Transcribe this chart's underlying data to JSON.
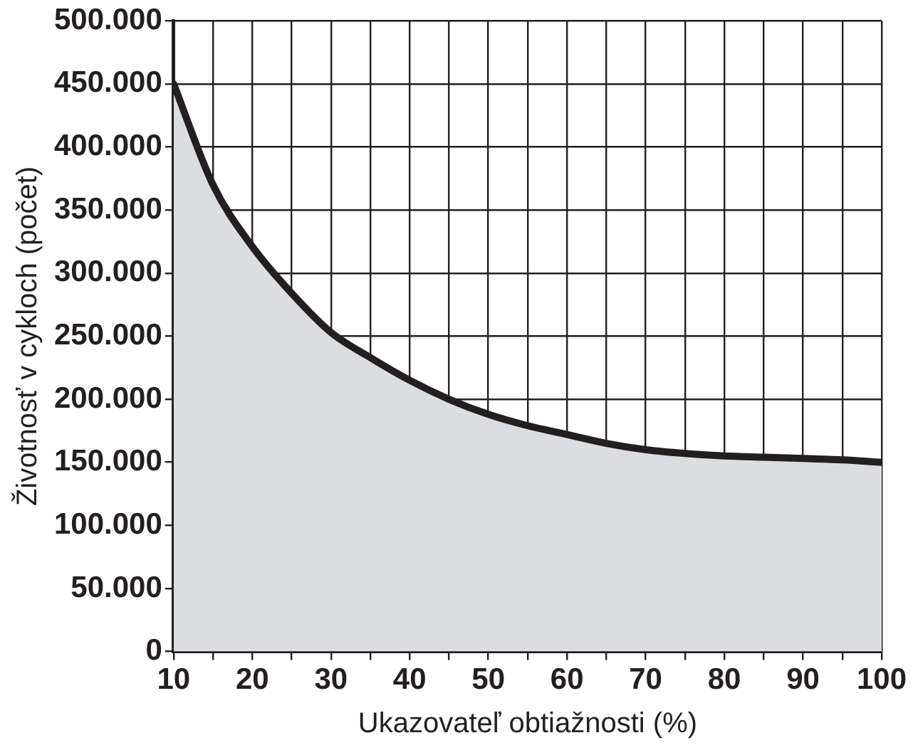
{
  "chart_data": {
    "type": "area",
    "xlabel": "Ukazovateľ obtiažnosti (%)",
    "ylabel": "Životnosť v cykloch (počet)",
    "x": [
      10,
      15,
      20,
      25,
      30,
      35,
      40,
      45,
      50,
      55,
      60,
      65,
      70,
      75,
      80,
      85,
      90,
      95,
      100
    ],
    "series": [
      {
        "color": "#231f20",
        "values": [
          450000,
          370000,
          321000,
          284000,
          253000,
          233000,
          215000,
          200000,
          188000,
          179000,
          172000,
          165000,
          160000,
          157000,
          155000,
          154000,
          153000,
          152000,
          150000
        ]
      }
    ],
    "xlim": [
      10,
      100
    ],
    "ylim": [
      0,
      500000
    ],
    "xticks": [
      10,
      {
        "value": 15,
        "label": null
      },
      20,
      {
        "value": 25,
        "label": null
      },
      30,
      {
        "value": 35,
        "label": null
      },
      40,
      {
        "value": 45,
        "label": null
      },
      50,
      {
        "value": 55,
        "label": null
      },
      60,
      {
        "value": 65,
        "label": null
      },
      70,
      {
        "value": 75,
        "label": null
      },
      80,
      {
        "value": 85,
        "label": null
      },
      90,
      {
        "value": 95,
        "label": null
      },
      100
    ],
    "yticks": [
      {
        "value": 0,
        "label": "0"
      },
      {
        "value": 50000,
        "label": "50.000"
      },
      {
        "value": 100000,
        "label": "100.000"
      },
      {
        "value": 150000,
        "label": "150.000"
      },
      {
        "value": 200000,
        "label": "200.000"
      },
      {
        "value": 250000,
        "label": "250.000"
      },
      {
        "value": 300000,
        "label": "300.000"
      },
      {
        "value": 350000,
        "label": "350.000"
      },
      {
        "value": 400000,
        "label": "400.000"
      },
      {
        "value": 450000,
        "label": "450.000"
      },
      {
        "value": 500000,
        "label": "500.000"
      }
    ],
    "grid": true,
    "legend": false,
    "marker": "none",
    "line_style": "solid"
  }
}
